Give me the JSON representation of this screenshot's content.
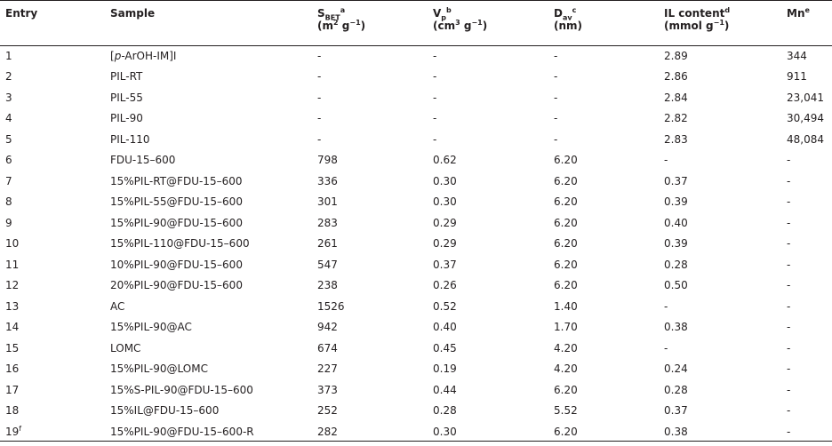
{
  "headers": {
    "entry": "Entry",
    "sample": "Sample",
    "sbet": {
      "main": "S",
      "sub": "BET",
      "sup": "a",
      "unit_pre": "(m",
      "unit_sup": "2",
      "unit_mid": " g",
      "unit_sup2": "−1",
      "unit_post": ")"
    },
    "vp": {
      "main": "V",
      "sub": "p",
      "sup": "b",
      "unit_pre": "(cm",
      "unit_sup": "3",
      "unit_mid": " g",
      "unit_sup2": "−1",
      "unit_post": ")"
    },
    "dav": {
      "main": "D",
      "sub": "av",
      "sup": "c",
      "unit": "(nm)"
    },
    "il": {
      "main": "IL content",
      "sup": "d",
      "unit_pre": "(mmol g",
      "unit_sup": "−1",
      "unit_post": ")"
    },
    "mn": {
      "main": "Mn",
      "sup": "e"
    }
  },
  "rows": [
    {
      "entry": "1",
      "entry_sup": "",
      "sample_pre": "[",
      "sample_italic": "p",
      "sample_post": "-ArOH-IM]I",
      "sbet": "-",
      "vp": "-",
      "dav": "-",
      "il": "2.89",
      "mn": "344"
    },
    {
      "entry": "2",
      "entry_sup": "",
      "sample_pre": "PIL-RT",
      "sample_italic": "",
      "sample_post": "",
      "sbet": "-",
      "vp": "-",
      "dav": "-",
      "il": "2.86",
      "mn": "911"
    },
    {
      "entry": "3",
      "entry_sup": "",
      "sample_pre": "PIL-55",
      "sample_italic": "",
      "sample_post": "",
      "sbet": "-",
      "vp": "-",
      "dav": "-",
      "il": "2.84",
      "mn": "23,041"
    },
    {
      "entry": "4",
      "entry_sup": "",
      "sample_pre": "PIL-90",
      "sample_italic": "",
      "sample_post": "",
      "sbet": "-",
      "vp": "-",
      "dav": "-",
      "il": "2.82",
      "mn": "30,494"
    },
    {
      "entry": "5",
      "entry_sup": "",
      "sample_pre": "PIL-110",
      "sample_italic": "",
      "sample_post": "",
      "sbet": "-",
      "vp": "-",
      "dav": "-",
      "il": "2.83",
      "mn": "48,084"
    },
    {
      "entry": "6",
      "entry_sup": "",
      "sample_pre": "FDU-15–600",
      "sample_italic": "",
      "sample_post": "",
      "sbet": "798",
      "vp": "0.62",
      "dav": "6.20",
      "il": "-",
      "mn": "-"
    },
    {
      "entry": "7",
      "entry_sup": "",
      "sample_pre": "15%PIL-RT@FDU-15–600",
      "sample_italic": "",
      "sample_post": "",
      "sbet": "336",
      "vp": "0.30",
      "dav": "6.20",
      "il": "0.37",
      "mn": "-"
    },
    {
      "entry": "8",
      "entry_sup": "",
      "sample_pre": "15%PIL-55@FDU-15–600",
      "sample_italic": "",
      "sample_post": "",
      "sbet": "301",
      "vp": "0.30",
      "dav": "6.20",
      "il": "0.39",
      "mn": "-"
    },
    {
      "entry": "9",
      "entry_sup": "",
      "sample_pre": "15%PIL-90@FDU-15–600",
      "sample_italic": "",
      "sample_post": "",
      "sbet": "283",
      "vp": "0.29",
      "dav": "6.20",
      "il": "0.40",
      "mn": "-"
    },
    {
      "entry": "10",
      "entry_sup": "",
      "sample_pre": "15%PIL-110@FDU-15–600",
      "sample_italic": "",
      "sample_post": "",
      "sbet": "261",
      "vp": "0.29",
      "dav": "6.20",
      "il": "0.39",
      "mn": "-"
    },
    {
      "entry": "11",
      "entry_sup": "",
      "sample_pre": "10%PIL-90@FDU-15–600",
      "sample_italic": "",
      "sample_post": "",
      "sbet": "547",
      "vp": "0.37",
      "dav": "6.20",
      "il": "0.28",
      "mn": "-"
    },
    {
      "entry": "12",
      "entry_sup": "",
      "sample_pre": "20%PIL-90@FDU-15–600",
      "sample_italic": "",
      "sample_post": "",
      "sbet": "238",
      "vp": "0.26",
      "dav": "6.20",
      "il": "0.50",
      "mn": "-"
    },
    {
      "entry": "13",
      "entry_sup": "",
      "sample_pre": "AC",
      "sample_italic": "",
      "sample_post": "",
      "sbet": "1526",
      "vp": "0.52",
      "dav": "1.40",
      "il": "-",
      "mn": "-"
    },
    {
      "entry": "14",
      "entry_sup": "",
      "sample_pre": "15%PIL-90@AC",
      "sample_italic": "",
      "sample_post": "",
      "sbet": "942",
      "vp": "0.40",
      "dav": "1.70",
      "il": "0.38",
      "mn": "-"
    },
    {
      "entry": "15",
      "entry_sup": "",
      "sample_pre": "LOMC",
      "sample_italic": "",
      "sample_post": "",
      "sbet": "674",
      "vp": "0.45",
      "dav": "4.20",
      "il": "-",
      "mn": "-"
    },
    {
      "entry": "16",
      "entry_sup": "",
      "sample_pre": "15%PIL-90@LOMC",
      "sample_italic": "",
      "sample_post": "",
      "sbet": "227",
      "vp": "0.19",
      "dav": "4.20",
      "il": "0.24",
      "mn": "-"
    },
    {
      "entry": "17",
      "entry_sup": "",
      "sample_pre": "15%S-PIL-90@FDU-15–600",
      "sample_italic": "",
      "sample_post": "",
      "sbet": "373",
      "vp": "0.44",
      "dav": "6.20",
      "il": "0.28",
      "mn": "-"
    },
    {
      "entry": "18",
      "entry_sup": "",
      "sample_pre": "15%IL@FDU-15–600",
      "sample_italic": "",
      "sample_post": "",
      "sbet": "252",
      "vp": "0.28",
      "dav": "5.52",
      "il": "0.37",
      "mn": "-"
    },
    {
      "entry": "19",
      "entry_sup": "f",
      "sample_pre": "15%PIL-90@FDU-15–600-R",
      "sample_italic": "",
      "sample_post": "",
      "sbet": "282",
      "vp": "0.30",
      "dav": "6.20",
      "il": "0.38",
      "mn": "-"
    }
  ]
}
